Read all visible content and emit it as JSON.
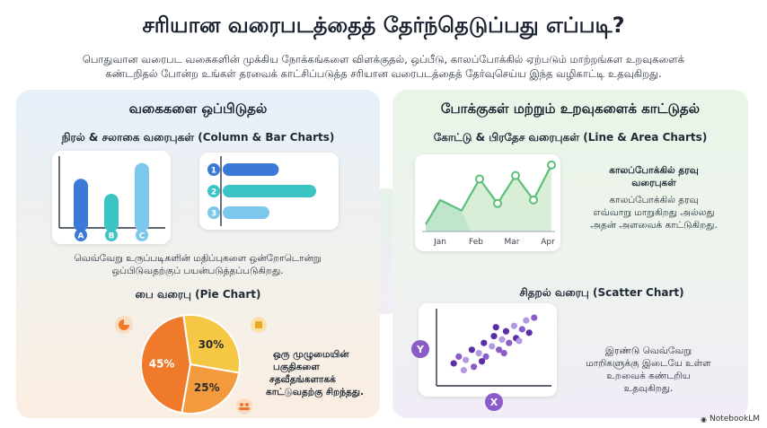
{
  "header": {
    "title": "சரியான வரைபடத்தைத் தேர்ந்தெடுப்பது எப்படி?",
    "subtitle_line1": "பொதுவான வரைபட வகைகளின் முக்கிய நோக்கங்களை விளக்குதல், ஒப்பீடு, காலப்போக்கில் ஏற்படும் மாற்றங்கள உறவுகளைக்",
    "subtitle_line2": "கண்டறிதல் போன்ற உங்கள் தரவைக் காட்சிப்படுத்த சரியான வரைபடத்தைத் தேர்வுசெய்ய இந்த வழிகாட்டி உதவுகிறது."
  },
  "left": {
    "heading": "வகைகளை ஒப்பிடுதல்",
    "bars": {
      "heading": "நிரல் & சலாகை வரைபுகள் (Column & Bar Charts)",
      "description_line1": "வெவ்வேறு உருப்படிகளின் மதிப்புகளை ஒன்றோடொன்று",
      "description_line2": "ஒப்பிடுவதற்குப் பயன்படுத்தப்படுகிறது."
    },
    "pie": {
      "heading": "பை வரைபு (Pie Chart)",
      "description_line1": "ஒரு முழுமையின்",
      "description_line2": "பகுதிகளை",
      "description_line3": "சதவீதங்களாகக்",
      "description_line4": "காட்டுவதற்கு சிறந்தது."
    }
  },
  "right": {
    "heading": "போக்குகள் மற்றும் உறவுகளைக் காட்டுதல்",
    "line": {
      "heading": "கோட்டு & பிரதேச வரைபுகள் (Line & Area Charts)",
      "side_title_line1": "காலப்போக்கில் தரவு",
      "side_title_line2": "வரைபுகள்",
      "description_line1": "காலப்போக்கில் தரவு",
      "description_line2": "எவ்வாறு மாறுகிறது அல்லது",
      "description_line3": "அதன் அளவைக் காட்டுகிறது."
    },
    "scatter": {
      "heading": "சிதறல் வரைபு (Scatter Chart)",
      "description_line1": "இரண்டு வெவ்வேறு",
      "description_line2": "மாறிகளுக்கு இடையே உள்ள",
      "description_line3": "உறவைக் கண்டறிய",
      "description_line4": "உதவுகிறது."
    }
  },
  "brand": "NotebookLM",
  "colors": {
    "blue_dark": "#3a79d8",
    "teal": "#3cc3c3",
    "blue_light": "#7cc8ec",
    "green": "#5cbf7a",
    "purple": "#8a5cc8",
    "orange": "#ef7a2c",
    "yellow": "#f6c645"
  },
  "chart_data": [
    {
      "type": "bar",
      "orientation": "vertical",
      "categories": [
        "A",
        "B",
        "C"
      ],
      "values": [
        0.72,
        0.5,
        0.95
      ]
    },
    {
      "type": "bar",
      "orientation": "horizontal",
      "categories": [
        "1",
        "2",
        "3"
      ],
      "values": [
        0.6,
        1.0,
        0.5
      ]
    },
    {
      "type": "pie",
      "labels": [
        "45%",
        "30%",
        "25%"
      ],
      "values": [
        45,
        30,
        25
      ]
    },
    {
      "type": "area",
      "categories": [
        "Jan",
        "Feb",
        "Mar",
        "Apr"
      ],
      "x": [
        0,
        0.4,
        1.0,
        1.5,
        2.0,
        2.5,
        3.0,
        3.5
      ],
      "y": [
        0.1,
        0.45,
        0.3,
        0.75,
        0.4,
        0.8,
        0.45,
        0.95
      ]
    },
    {
      "type": "scatter",
      "xlabel": "X",
      "ylabel": "Y",
      "points": [
        [
          0.1,
          0.25
        ],
        [
          0.15,
          0.35
        ],
        [
          0.22,
          0.3
        ],
        [
          0.28,
          0.45
        ],
        [
          0.3,
          0.2
        ],
        [
          0.35,
          0.4
        ],
        [
          0.4,
          0.55
        ],
        [
          0.42,
          0.35
        ],
        [
          0.48,
          0.5
        ],
        [
          0.5,
          0.65
        ],
        [
          0.55,
          0.45
        ],
        [
          0.58,
          0.6
        ],
        [
          0.62,
          0.72
        ],
        [
          0.65,
          0.55
        ],
        [
          0.7,
          0.8
        ],
        [
          0.72,
          0.62
        ],
        [
          0.78,
          0.75
        ],
        [
          0.82,
          0.88
        ],
        [
          0.85,
          0.7
        ],
        [
          0.9,
          0.92
        ],
        [
          0.2,
          0.15
        ],
        [
          0.38,
          0.28
        ],
        [
          0.6,
          0.4
        ],
        [
          0.75,
          0.58
        ],
        [
          0.52,
          0.78
        ]
      ]
    }
  ]
}
